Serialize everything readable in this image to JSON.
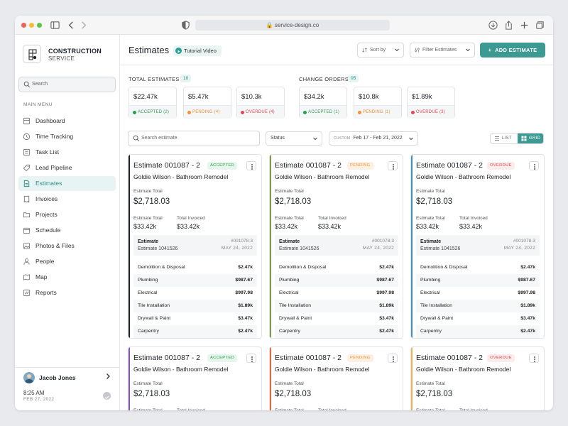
{
  "browser": {
    "url": "service-design.co"
  },
  "colors": {
    "accent": "#3c9a93",
    "accepted": "#2e9e4f",
    "pending": "#f0923b",
    "overdue": "#e5484d"
  },
  "sidebar": {
    "brand_line1": "CONSTRUCTION",
    "brand_line2": "SERVICE",
    "search_placeholder": "Search",
    "menu_title": "MAIN MENU",
    "items": [
      {
        "label": "Dashboard",
        "icon": "dashboard-icon"
      },
      {
        "label": "Time Tracking",
        "icon": "clock-icon"
      },
      {
        "label": "Task List",
        "icon": "list-icon"
      },
      {
        "label": "Lead Pipeline",
        "icon": "tag-icon"
      },
      {
        "label": "Estimates",
        "icon": "document-icon"
      },
      {
        "label": "Invoices",
        "icon": "invoice-icon"
      },
      {
        "label": "Projects",
        "icon": "folder-icon"
      },
      {
        "label": "Schedule",
        "icon": "calendar-icon"
      },
      {
        "label": "Photos & Files",
        "icon": "image-icon"
      },
      {
        "label": "People",
        "icon": "person-icon"
      },
      {
        "label": "Map",
        "icon": "map-icon"
      },
      {
        "label": "Reports",
        "icon": "chart-icon"
      }
    ],
    "user": {
      "name": "Jacob Jones",
      "time": "8:25 AM",
      "date": "FEB 27, 2022"
    }
  },
  "header": {
    "title": "Estimates",
    "tutorial_label": "Tutorial Video",
    "sort_label": "Sort by",
    "filter_label": "Filter Estimates",
    "add_label": "ADD ESTIMATE"
  },
  "summary": {
    "estimates_title": "TOTAL ESTIMATES",
    "estimates_count": "10",
    "change_title": "CHANGE ORDERS",
    "change_count": "05",
    "estimate_stats": [
      {
        "value": "$22.47k",
        "status": "ACCEPTED (2)",
        "kind": "accepted"
      },
      {
        "value": "$5.47k",
        "status": "PENDING (4)",
        "kind": "pending"
      },
      {
        "value": "$10.3k",
        "status": "OVERDUE (4)",
        "kind": "overdue"
      }
    ],
    "change_stats": [
      {
        "value": "$34.2k",
        "status": "ACCEPTED (1)",
        "kind": "accepted"
      },
      {
        "value": "$10.8k",
        "status": "PENDING (1)",
        "kind": "pending"
      },
      {
        "value": "$1.89k",
        "status": "OVERDUE (3)",
        "kind": "overdue"
      }
    ]
  },
  "filters": {
    "search_placeholder": "Search estimate",
    "status_label": "Status",
    "custom_label": "CUSTOM",
    "date_range": "Feb 17 - Feb 21, 2022",
    "list_label": "LIST",
    "grid_label": "GRID"
  },
  "cards": [
    {
      "title": "Estimate 001087 - 2",
      "badge": "ACCEPTED",
      "kind": "accepted",
      "accent": "#1f2328",
      "subtitle": "Goldie Wilson - Bathroom Remodel",
      "total_label": "Estimate Total",
      "total": "$2,718.03",
      "etotal_label": "Estimate Total",
      "etotal": "$33.42k",
      "inv_label": "Total Invoiced",
      "inv": "$33.42k",
      "est_label": "Estimate",
      "est_no": "Estimate 1041526",
      "ref": "#001078-3",
      "date": "MAY 24, 2022",
      "rows": [
        [
          "Demolition & Disposal",
          "$2.47k"
        ],
        [
          "Plumbing",
          "$987.67"
        ],
        [
          "Electrical",
          "$997.98"
        ],
        [
          "Tile Installation",
          "$1.89k"
        ],
        [
          "Drywall & Paint",
          "$3.47k"
        ],
        [
          "Carpentry",
          "$2.47k"
        ]
      ]
    },
    {
      "title": "Estimate 001087 - 2",
      "badge": "PENDING",
      "kind": "pending",
      "accent": "#7a9c4a",
      "subtitle": "Goldie Wilson - Bathroom Remodel",
      "total_label": "Estimate Total",
      "total": "$2,718.03",
      "etotal_label": "Estimate Total",
      "etotal": "$33.42k",
      "inv_label": "Total Invoiced",
      "inv": "$33.42k",
      "est_label": "Estimate",
      "est_no": "Estimate 1041526",
      "ref": "#001078-3",
      "date": "MAY 24, 2022",
      "rows": [
        [
          "Demolition & Disposal",
          "$2.47k"
        ],
        [
          "Plumbing",
          "$987.67"
        ],
        [
          "Electrical",
          "$997.98"
        ],
        [
          "Tile Installation",
          "$1.89k"
        ],
        [
          "Drywall & Paint",
          "$3.47k"
        ],
        [
          "Carpentry",
          "$2.47k"
        ]
      ]
    },
    {
      "title": "Estimate 001087 - 2",
      "badge": "OVERDUE",
      "kind": "overdue",
      "accent": "#3d8fc9",
      "subtitle": "Goldie Wilson - Bathroom Remodel",
      "total_label": "Estimate Total",
      "total": "$2,718.03",
      "etotal_label": "Estimate Total",
      "etotal": "$33.42k",
      "inv_label": "Total Invoiced",
      "inv": "$33.42k",
      "est_label": "Estimate",
      "est_no": "Estimate 1041526",
      "ref": "#001078-3",
      "date": "MAY 24, 2022",
      "rows": [
        [
          "Demolition & Disposal",
          "$2.47k"
        ],
        [
          "Plumbing",
          "$987.67"
        ],
        [
          "Electrical",
          "$997.98"
        ],
        [
          "Tile Installation",
          "$1.89k"
        ],
        [
          "Drywall & Paint",
          "$3.47k"
        ],
        [
          "Carpentry",
          "$2.47k"
        ]
      ]
    },
    {
      "title": "Estimate 001087 - 2",
      "badge": "ACCEPTED",
      "kind": "accepted",
      "accent": "#8a4fc4",
      "subtitle": "Goldie Wilson - Bathroom Remodel",
      "total_label": "Estimate Total",
      "total": "$2,718.03",
      "etotal_label": "Estimate Total",
      "inv_label": "Total Invoiced"
    },
    {
      "title": "Estimate 001087 - 2",
      "badge": "PENDING",
      "kind": "pending",
      "accent": "#e06a3a",
      "subtitle": "Goldie Wilson - Bathroom Remodel",
      "total_label": "Estimate Total",
      "total": "$2,718.03",
      "etotal_label": "Estimate Total",
      "inv_label": "Total Invoiced"
    },
    {
      "title": "Estimate 001087 - 2",
      "badge": "OVERDUE",
      "kind": "overdue",
      "accent": "#f0b24a",
      "subtitle": "Goldie Wilson - Bathroom Remodel",
      "total_label": "Estimate Total",
      "total": "$2,718.03",
      "etotal_label": "Estimate Total",
      "inv_label": "Total Invoiced"
    }
  ]
}
